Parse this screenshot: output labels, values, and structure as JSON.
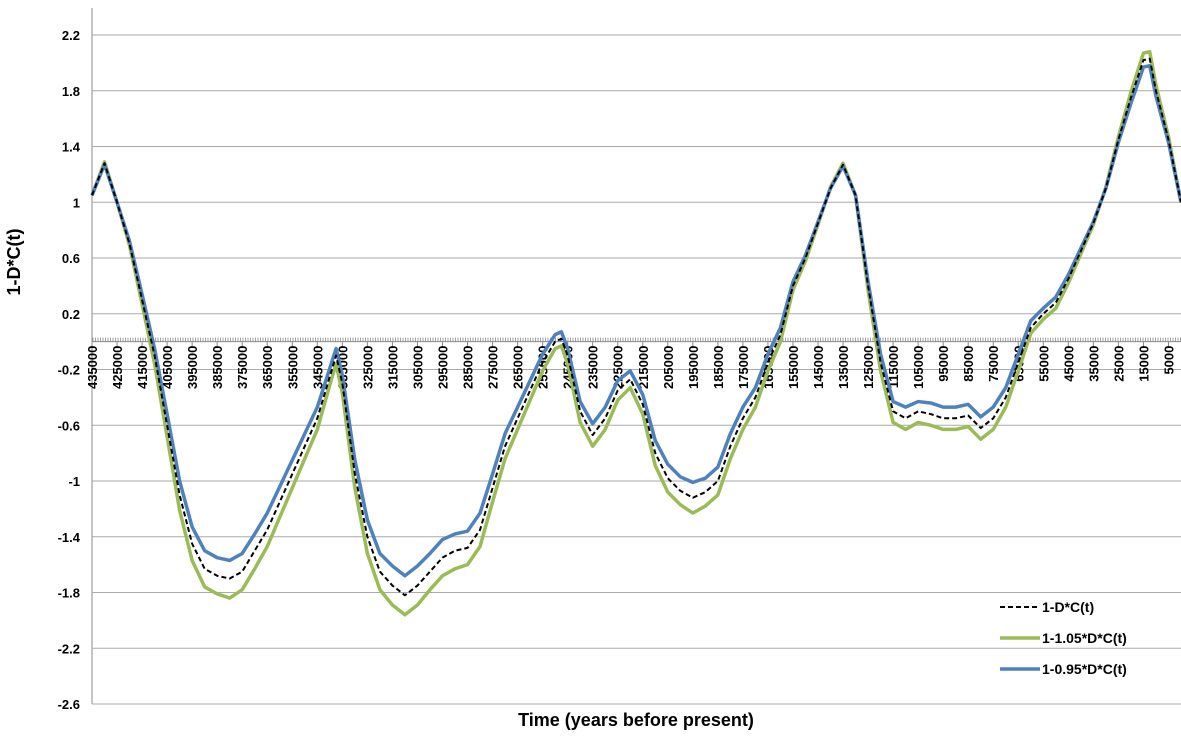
{
  "chart_data": {
    "type": "line",
    "x_label": "Time (years before present)",
    "y_label": "1-D*C(t)",
    "x": [
      435000,
      430000,
      425000,
      420000,
      415000,
      410000,
      405000,
      400000,
      395000,
      390000,
      385000,
      380000,
      375000,
      370000,
      365000,
      360000,
      355000,
      350000,
      345000,
      340000,
      337500,
      335000,
      330000,
      325000,
      320000,
      315000,
      310000,
      305000,
      300000,
      295000,
      290000,
      285000,
      280000,
      275000,
      270000,
      265000,
      260000,
      255000,
      250000,
      247500,
      245000,
      240000,
      235000,
      230000,
      225000,
      220000,
      215000,
      210000,
      205000,
      200000,
      195000,
      190000,
      185000,
      180000,
      175000,
      170000,
      165000,
      160000,
      155000,
      150000,
      145000,
      140000,
      135000,
      130000,
      125000,
      120000,
      115000,
      110000,
      105000,
      100000,
      95000,
      90000,
      85000,
      80000,
      75000,
      70000,
      65000,
      60000,
      55000,
      50000,
      45000,
      40000,
      35000,
      30000,
      25000,
      20000,
      15000,
      12500,
      10000,
      5000,
      0
    ],
    "series": [
      {
        "name": "1-1.05*D*C(t)",
        "color": "#9bbb59",
        "dash": false,
        "values": [
          1.05,
          1.29,
          1.0,
          0.69,
          0.27,
          -0.16,
          -0.68,
          -1.21,
          -1.57,
          -1.76,
          -1.81,
          -1.84,
          -1.78,
          -1.63,
          -1.47,
          -1.26,
          -1.05,
          -0.84,
          -0.63,
          -0.31,
          -0.16,
          -0.37,
          -1.05,
          -1.52,
          -1.78,
          -1.89,
          -1.96,
          -1.89,
          -1.78,
          -1.68,
          -1.63,
          -1.6,
          -1.47,
          -1.15,
          -0.84,
          -0.63,
          -0.42,
          -0.21,
          -0.05,
          -0.03,
          -0.16,
          -0.58,
          -0.75,
          -0.63,
          -0.42,
          -0.33,
          -0.52,
          -0.89,
          -1.08,
          -1.17,
          -1.23,
          -1.18,
          -1.1,
          -0.84,
          -0.63,
          -0.47,
          -0.21,
          0.0,
          0.37,
          0.58,
          0.84,
          1.11,
          1.28,
          1.05,
          0.37,
          -0.21,
          -0.58,
          -0.63,
          -0.58,
          -0.6,
          -0.63,
          -0.63,
          -0.61,
          -0.7,
          -0.63,
          -0.47,
          -0.21,
          0.06,
          0.16,
          0.24,
          0.42,
          0.63,
          0.84,
          1.11,
          1.47,
          1.79,
          2.07,
          2.08,
          1.84,
          1.47,
          1.0
        ]
      },
      {
        "name": "1-0.95*D*C(t)",
        "color": "#4f81bd",
        "dash": false,
        "values": [
          1.05,
          1.27,
          1.0,
          0.72,
          0.34,
          -0.05,
          -0.52,
          -1.0,
          -1.33,
          -1.5,
          -1.55,
          -1.57,
          -1.52,
          -1.38,
          -1.23,
          -1.04,
          -0.85,
          -0.66,
          -0.47,
          -0.19,
          -0.05,
          -0.24,
          -0.85,
          -1.28,
          -1.52,
          -1.61,
          -1.68,
          -1.61,
          -1.52,
          -1.42,
          -1.38,
          -1.36,
          -1.23,
          -0.95,
          -0.66,
          -0.47,
          -0.28,
          -0.09,
          0.05,
          0.07,
          -0.05,
          -0.43,
          -0.59,
          -0.47,
          -0.28,
          -0.21,
          -0.38,
          -0.71,
          -0.88,
          -0.97,
          -1.01,
          -0.98,
          -0.9,
          -0.66,
          -0.47,
          -0.33,
          -0.09,
          0.1,
          0.43,
          0.62,
          0.86,
          1.1,
          1.26,
          1.05,
          0.43,
          -0.09,
          -0.43,
          -0.47,
          -0.43,
          -0.44,
          -0.47,
          -0.47,
          -0.45,
          -0.54,
          -0.47,
          -0.33,
          -0.09,
          0.15,
          0.24,
          0.32,
          0.48,
          0.67,
          0.86,
          1.1,
          1.43,
          1.71,
          1.97,
          1.98,
          1.76,
          1.43,
          1.0
        ]
      },
      {
        "name": "1-D*C(t)",
        "color": "#000000",
        "dash": true,
        "values": [
          1.05,
          1.28,
          1.0,
          0.7,
          0.3,
          -0.1,
          -0.6,
          -1.1,
          -1.45,
          -1.63,
          -1.68,
          -1.7,
          -1.65,
          -1.5,
          -1.35,
          -1.15,
          -0.95,
          -0.75,
          -0.55,
          -0.25,
          -0.1,
          -0.3,
          -0.95,
          -1.4,
          -1.65,
          -1.75,
          -1.82,
          -1.75,
          -1.65,
          -1.55,
          -1.5,
          -1.48,
          -1.35,
          -1.05,
          -0.75,
          -0.55,
          -0.35,
          -0.15,
          0.0,
          0.02,
          -0.1,
          -0.5,
          -0.67,
          -0.55,
          -0.35,
          -0.27,
          -0.45,
          -0.8,
          -0.98,
          -1.07,
          -1.12,
          -1.08,
          -1.0,
          -0.75,
          -0.55,
          -0.4,
          -0.15,
          0.05,
          0.4,
          0.6,
          0.85,
          1.1,
          1.27,
          1.05,
          0.4,
          -0.15,
          -0.5,
          -0.55,
          -0.5,
          -0.52,
          -0.55,
          -0.55,
          -0.53,
          -0.62,
          -0.55,
          -0.4,
          -0.15,
          0.1,
          0.2,
          0.28,
          0.45,
          0.65,
          0.85,
          1.1,
          1.45,
          1.75,
          2.02,
          2.03,
          1.8,
          1.45,
          1.0
        ]
      }
    ],
    "legend_order": [
      2,
      0,
      1
    ],
    "xlim": [
      435000,
      0
    ],
    "xticks": [
      435000,
      425000,
      415000,
      405000,
      395000,
      385000,
      375000,
      365000,
      355000,
      345000,
      335000,
      325000,
      315000,
      305000,
      295000,
      285000,
      275000,
      265000,
      255000,
      245000,
      235000,
      225000,
      215000,
      205000,
      195000,
      185000,
      175000,
      165000,
      155000,
      145000,
      135000,
      125000,
      115000,
      105000,
      95000,
      85000,
      75000,
      65000,
      55000,
      45000,
      35000,
      25000,
      15000,
      5000
    ],
    "ylim": [
      -2.6,
      2.2
    ],
    "yticks": [
      -2.6,
      -2.2,
      -1.8,
      -1.4,
      -1,
      -0.6,
      -0.2,
      0.2,
      0.6,
      1,
      1.4,
      1.8,
      2.2
    ],
    "grid": true,
    "legend_position": "lower right"
  }
}
